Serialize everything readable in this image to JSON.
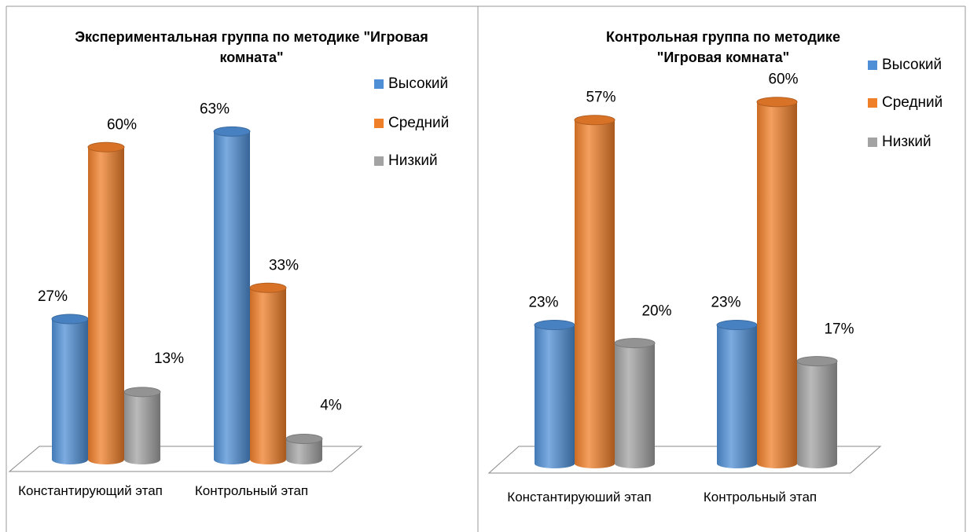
{
  "chart_data": [
    {
      "type": "bar3d",
      "title": "Экспериментальная группа по методике \"Игровая комната\"",
      "categories": [
        "Константирующий этап",
        "Контрольный этап"
      ],
      "series": [
        {
          "name": "Высокий",
          "color": "#4f8fd6",
          "values": [
            27,
            63
          ],
          "value_labels": [
            "27%",
            "63%"
          ]
        },
        {
          "name": "Средний",
          "color": "#f07f2a",
          "values": [
            60,
            33
          ],
          "value_labels": [
            "60%",
            "33%"
          ]
        },
        {
          "name": "Низкий",
          "color": "#a3a3a3",
          "values": [
            13,
            4
          ],
          "value_labels": [
            "13%",
            "4%"
          ]
        }
      ],
      "ylim": [
        0,
        70
      ]
    },
    {
      "type": "bar3d",
      "title": "Контрольная группа по методике \"Игровая комната\"",
      "categories": [
        "Константируюший этап",
        "Контрольный этап"
      ],
      "series": [
        {
          "name": "Высокий",
          "color": "#4f8fd6",
          "values": [
            23,
            23
          ],
          "value_labels": [
            "23%",
            "23%"
          ]
        },
        {
          "name": "Средний",
          "color": "#f07f2a",
          "values": [
            57,
            60
          ],
          "value_labels": [
            "57%",
            "60%"
          ]
        },
        {
          "name": "Низкий",
          "color": "#a3a3a3",
          "values": [
            20,
            17
          ],
          "value_labels": [
            "20%",
            "17%"
          ]
        }
      ],
      "ylim": [
        0,
        70
      ]
    }
  ]
}
